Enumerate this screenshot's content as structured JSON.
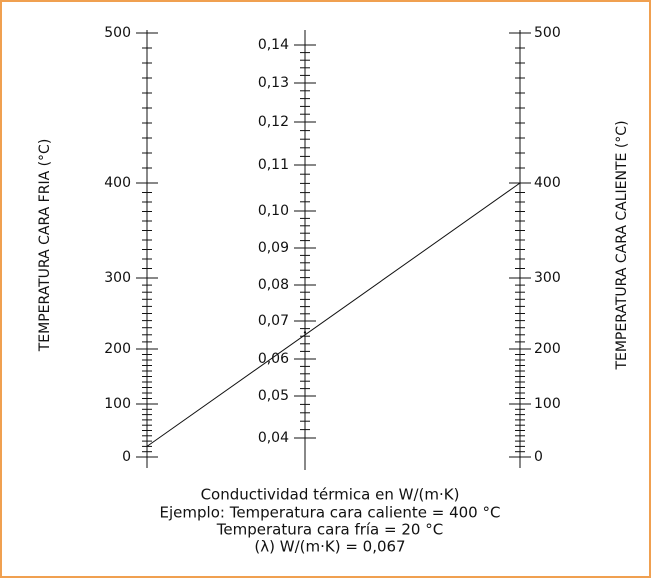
{
  "scales": [
    {
      "name": "TEMPERATURA CARA FRIA (°C)",
      "ticks": [
        0,
        100,
        200,
        300,
        400,
        500
      ]
    },
    {
      "ticks": [
        {
          "value": 0.04,
          "label": "0,04"
        },
        {
          "value": 0.05,
          "label": "0,05"
        },
        {
          "value": 0.06,
          "label": "0,06"
        },
        {
          "value": 0.07,
          "label": "0,07"
        },
        {
          "value": 0.08,
          "label": "0,08"
        },
        {
          "value": 0.09,
          "label": "0,09"
        },
        {
          "value": 0.1,
          "label": "0,10"
        },
        {
          "value": 0.11,
          "label": "0,11"
        },
        {
          "value": 0.12,
          "label": "0,12"
        },
        {
          "value": 0.13,
          "label": "0,13"
        },
        {
          "value": 0.14,
          "label": "0,14"
        }
      ]
    },
    {
      "name": "TEMPERATURA CARA CALIENTE (°C)",
      "ticks": [
        0,
        100,
        200,
        300,
        400,
        500
      ]
    }
  ],
  "caption": [
    "Conductividad térmica en W/(m·K)",
    "Ejemplo: Temperatura cara caliente = 400 °C",
    "Temperatura cara fría = 20 °C",
    "(λ) W/(m·K) = 0,067"
  ],
  "example": {
    "cold": 20,
    "lambda": 0.067,
    "hot": 400
  }
}
